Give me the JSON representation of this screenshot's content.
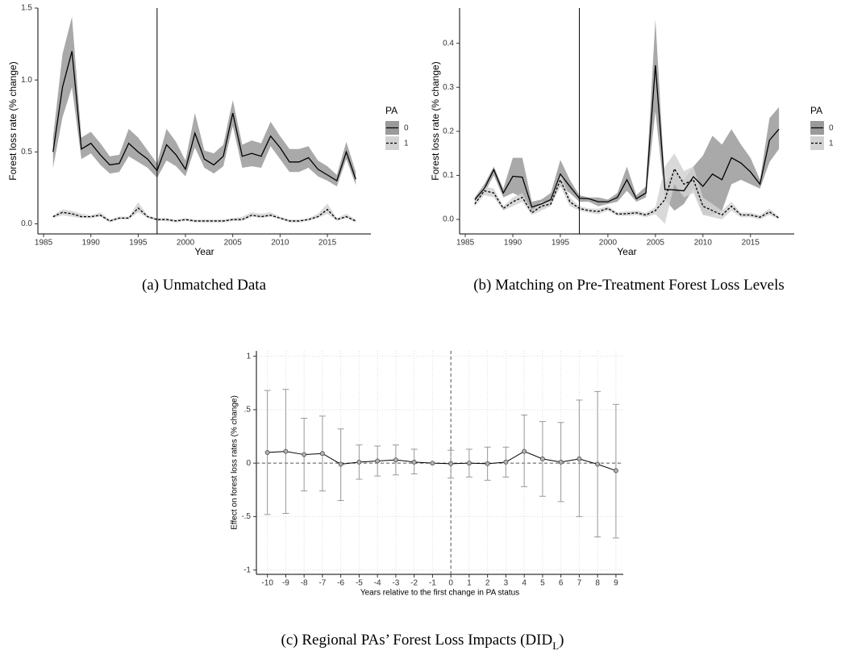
{
  "chart_data": [
    {
      "type": "line",
      "caption": "(a) Unmatched Data",
      "x_label": "Year",
      "y_label": "Forest loss rate (% change)",
      "legend_title": "PA",
      "legend": "right",
      "x": [
        1986,
        1987,
        1988,
        1989,
        1990,
        1991,
        1992,
        1993,
        1994,
        1995,
        1996,
        1997,
        1998,
        1999,
        2000,
        2001,
        2002,
        2003,
        2004,
        2005,
        2006,
        2007,
        2008,
        2009,
        2010,
        2011,
        2012,
        2013,
        2014,
        2015,
        2016,
        2017,
        2018
      ],
      "xlim": [
        1984.4,
        2019.6
      ],
      "xticks": [
        1985,
        1990,
        1995,
        2000,
        2005,
        2010,
        2015
      ],
      "ylim": [
        -0.07,
        1.5
      ],
      "yticks": [
        {
          "value": 0,
          "label": "0.0"
        },
        0.5,
        {
          "value": 1,
          "label": "1.0"
        },
        1.5
      ],
      "vline": 1997,
      "series": [
        {
          "name": "0",
          "color": "#000000",
          "dash": "solid",
          "band_color": "#9a9a9a",
          "values": [
            0.5,
            0.95,
            1.2,
            0.52,
            0.56,
            0.48,
            0.41,
            0.42,
            0.56,
            0.5,
            0.45,
            0.37,
            0.55,
            0.48,
            0.38,
            0.63,
            0.45,
            0.41,
            0.47,
            0.77,
            0.47,
            0.49,
            0.47,
            0.61,
            0.53,
            0.43,
            0.43,
            0.46,
            0.38,
            0.34,
            0.3,
            0.5,
            0.31
          ],
          "lower": [
            0.39,
            0.74,
            0.95,
            0.45,
            0.49,
            0.41,
            0.35,
            0.36,
            0.47,
            0.43,
            0.39,
            0.32,
            0.44,
            0.4,
            0.33,
            0.53,
            0.39,
            0.35,
            0.4,
            0.68,
            0.39,
            0.4,
            0.39,
            0.54,
            0.45,
            0.36,
            0.36,
            0.39,
            0.33,
            0.3,
            0.26,
            0.45,
            0.27
          ],
          "upper": [
            0.6,
            1.18,
            1.44,
            0.6,
            0.64,
            0.56,
            0.47,
            0.48,
            0.66,
            0.6,
            0.51,
            0.42,
            0.66,
            0.57,
            0.44,
            0.77,
            0.51,
            0.49,
            0.55,
            0.86,
            0.55,
            0.58,
            0.56,
            0.71,
            0.61,
            0.52,
            0.52,
            0.54,
            0.44,
            0.4,
            0.34,
            0.57,
            0.36
          ]
        },
        {
          "name": "1",
          "color": "#000000",
          "dash": "dashed",
          "band_color": "#d2d2d2",
          "values": [
            0.05,
            0.08,
            0.07,
            0.05,
            0.05,
            0.06,
            0.02,
            0.04,
            0.04,
            0.11,
            0.05,
            0.03,
            0.03,
            0.02,
            0.03,
            0.02,
            0.02,
            0.02,
            0.02,
            0.03,
            0.03,
            0.06,
            0.05,
            0.06,
            0.04,
            0.02,
            0.02,
            0.03,
            0.05,
            0.1,
            0.03,
            0.05,
            0.02
          ],
          "lower": [
            0.04,
            0.06,
            0.05,
            0.04,
            0.04,
            0.05,
            0.01,
            0.03,
            0.03,
            0.08,
            0.04,
            0.02,
            0.02,
            0.01,
            0.02,
            0.01,
            0.01,
            0.01,
            0.01,
            0.02,
            0.02,
            0.05,
            0.04,
            0.05,
            0.03,
            0.01,
            0.01,
            0.02,
            0.04,
            0.07,
            0.02,
            0.04,
            0.01
          ],
          "upper": [
            0.06,
            0.1,
            0.09,
            0.07,
            0.06,
            0.08,
            0.03,
            0.05,
            0.05,
            0.15,
            0.06,
            0.04,
            0.04,
            0.03,
            0.04,
            0.03,
            0.03,
            0.03,
            0.03,
            0.04,
            0.05,
            0.08,
            0.07,
            0.08,
            0.05,
            0.03,
            0.03,
            0.04,
            0.07,
            0.14,
            0.04,
            0.07,
            0.03
          ]
        }
      ]
    },
    {
      "type": "line",
      "caption": "(b) Matching on Pre-Treatment Forest Loss Levels",
      "x_label": "Year",
      "y_label": "Forest loss rate (% change)",
      "legend_title": "PA",
      "legend": "right",
      "x": [
        1986,
        1987,
        1988,
        1989,
        1990,
        1991,
        1992,
        1993,
        1994,
        1995,
        1996,
        1997,
        1998,
        1999,
        2000,
        2001,
        2002,
        2003,
        2004,
        2005,
        2006,
        2007,
        2008,
        2009,
        2010,
        2011,
        2012,
        2013,
        2014,
        2015,
        2016,
        2017,
        2018
      ],
      "xlim": [
        1984.4,
        2019.6
      ],
      "xticks": [
        1985,
        1990,
        1995,
        2000,
        2005,
        2010,
        2015
      ],
      "ylim": [
        -0.033,
        0.48
      ],
      "yticks": [
        {
          "value": 0,
          "label": "0.0"
        },
        0.1,
        0.2,
        0.3,
        0.4
      ],
      "vline": 1997,
      "series": [
        {
          "name": "0",
          "color": "#000000",
          "dash": "solid",
          "band_color": "#9a9a9a",
          "values": [
            0.045,
            0.07,
            0.113,
            0.06,
            0.098,
            0.096,
            0.028,
            0.035,
            0.045,
            0.103,
            0.075,
            0.048,
            0.047,
            0.04,
            0.04,
            0.05,
            0.09,
            0.047,
            0.06,
            0.35,
            0.068,
            0.067,
            0.065,
            0.097,
            0.075,
            0.103,
            0.09,
            0.14,
            0.128,
            0.108,
            0.08,
            0.18,
            0.205
          ],
          "lower": [
            0.04,
            0.06,
            0.1,
            0.05,
            0.06,
            0.05,
            0.02,
            0.025,
            0.035,
            0.075,
            0.06,
            0.04,
            0.04,
            0.03,
            0.035,
            0.04,
            0.065,
            0.04,
            0.05,
            0.245,
            0.045,
            0.02,
            0.035,
            0.07,
            0.01,
            0.01,
            0.02,
            0.08,
            0.09,
            0.08,
            0.07,
            0.13,
            0.16
          ],
          "upper": [
            0.05,
            0.08,
            0.12,
            0.07,
            0.14,
            0.14,
            0.04,
            0.045,
            0.06,
            0.135,
            0.09,
            0.055,
            0.05,
            0.05,
            0.045,
            0.06,
            0.12,
            0.055,
            0.075,
            0.455,
            0.08,
            0.11,
            0.09,
            0.12,
            0.145,
            0.19,
            0.17,
            0.205,
            0.17,
            0.14,
            0.09,
            0.23,
            0.255
          ]
        },
        {
          "name": "1",
          "color": "#000000",
          "dash": "dashed",
          "band_color": "#d2d2d2",
          "values": [
            0.035,
            0.065,
            0.06,
            0.025,
            0.04,
            0.05,
            0.015,
            0.03,
            0.035,
            0.09,
            0.04,
            0.025,
            0.02,
            0.018,
            0.025,
            0.012,
            0.013,
            0.015,
            0.01,
            0.02,
            0.045,
            0.115,
            0.08,
            0.09,
            0.03,
            0.02,
            0.01,
            0.03,
            0.01,
            0.01,
            0.005,
            0.017,
            0.003
          ],
          "lower": [
            0.03,
            0.055,
            0.05,
            0.02,
            0.03,
            0.04,
            0.01,
            0.02,
            0.03,
            0.075,
            0.03,
            0.02,
            0.015,
            0.012,
            0.02,
            0.008,
            0.008,
            0.01,
            0.005,
            0.012,
            -0.01,
            0.08,
            0.05,
            0.06,
            0.01,
            0.005,
            0.0,
            0.02,
            0.005,
            0.005,
            0.0,
            0.01,
            0.0
          ],
          "upper": [
            0.04,
            0.075,
            0.07,
            0.03,
            0.05,
            0.06,
            0.02,
            0.04,
            0.04,
            0.105,
            0.05,
            0.03,
            0.025,
            0.024,
            0.03,
            0.016,
            0.018,
            0.02,
            0.015,
            0.028,
            0.12,
            0.15,
            0.11,
            0.12,
            0.05,
            0.035,
            0.02,
            0.04,
            0.015,
            0.015,
            0.01,
            0.024,
            0.006
          ]
        }
      ]
    },
    {
      "type": "errorbar",
      "caption": "(c) Regional PAs’ Forest Loss Impacts (DID",
      "caption_subscript": "L",
      "caption_end": ")",
      "x_label": "Years relative to the first change in PA status",
      "y_label": "Effect on forest loss rates (% change)",
      "x": [
        -10,
        -9,
        -8,
        -7,
        -6,
        -5,
        -4,
        -3,
        -2,
        -1,
        0,
        1,
        2,
        3,
        4,
        5,
        6,
        7,
        8,
        9
      ],
      "xlim": [
        -10.6,
        9.4
      ],
      "xticks": [
        -10,
        -9,
        -8,
        -7,
        -6,
        -5,
        -4,
        -3,
        -2,
        -1,
        0,
        1,
        2,
        3,
        4,
        5,
        6,
        7,
        8,
        9
      ],
      "ylim": [
        -1.04,
        1.05
      ],
      "yticks": [
        -1,
        {
          "value": -0.5,
          "label": "-.5"
        },
        0,
        {
          "value": 0.5,
          "label": ".5"
        },
        1
      ],
      "grid": true,
      "hline": 0,
      "vline": 0,
      "color": "#000000",
      "marker_color": "#b0b0b0",
      "errorbar_color": "#999999",
      "values": [
        0.1,
        0.11,
        0.08,
        0.09,
        -0.01,
        0.01,
        0.02,
        0.03,
        0.01,
        0.0,
        -0.005,
        0.0,
        -0.005,
        0.01,
        0.11,
        0.04,
        0.01,
        0.04,
        -0.01,
        -0.07
      ],
      "lower": [
        -0.48,
        -0.47,
        -0.26,
        -0.26,
        -0.35,
        -0.15,
        -0.12,
        -0.11,
        -0.1,
        null,
        -0.14,
        -0.13,
        -0.16,
        -0.13,
        -0.22,
        -0.31,
        -0.36,
        -0.5,
        -0.69,
        -0.7
      ],
      "upper": [
        0.68,
        0.69,
        0.42,
        0.44,
        0.32,
        0.17,
        0.16,
        0.17,
        0.13,
        null,
        0.12,
        0.13,
        0.15,
        0.15,
        0.45,
        0.39,
        0.38,
        0.59,
        0.67,
        0.55
      ]
    }
  ]
}
